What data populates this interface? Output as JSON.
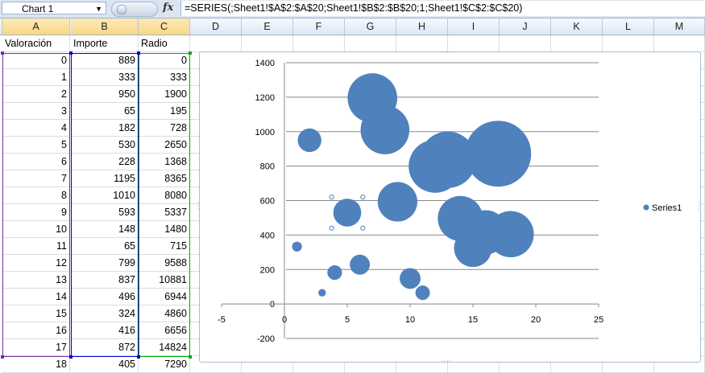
{
  "formula_bar": {
    "name_box": "Chart 1",
    "fx_label": "fx",
    "formula": "=SERIES(;Sheet1!$A$2:$A$20;Sheet1!$B$2:$B$20;1;Sheet1!$C$2:$C$20)"
  },
  "columns": [
    "A",
    "B",
    "C",
    "D",
    "E",
    "F",
    "G",
    "H",
    "I",
    "J",
    "K",
    "L",
    "M"
  ],
  "sheet": {
    "headers": [
      "Valoración",
      "Importe",
      "Radio"
    ],
    "rows": [
      [
        "0",
        "889",
        "0"
      ],
      [
        "1",
        "333",
        "333"
      ],
      [
        "2",
        "950",
        "1900"
      ],
      [
        "3",
        "65",
        "195"
      ],
      [
        "4",
        "182",
        "728"
      ],
      [
        "5",
        "530",
        "2650"
      ],
      [
        "6",
        "228",
        "1368"
      ],
      [
        "7",
        "1195",
        "8365"
      ],
      [
        "8",
        "1010",
        "8080"
      ],
      [
        "9",
        "593",
        "5337"
      ],
      [
        "10",
        "148",
        "1480"
      ],
      [
        "11",
        "65",
        "715"
      ],
      [
        "12",
        "799",
        "9588"
      ],
      [
        "13",
        "837",
        "10881"
      ],
      [
        "14",
        "496",
        "6944"
      ],
      [
        "15",
        "324",
        "4860"
      ],
      [
        "16",
        "416",
        "6656"
      ],
      [
        "17",
        "872",
        "14824"
      ],
      [
        "18",
        "405",
        "7290"
      ]
    ]
  },
  "chart_data": {
    "type": "scatter",
    "subtype": "bubble",
    "series": [
      {
        "name": "Series1",
        "color": "#4f81bd",
        "x": [
          0,
          1,
          2,
          3,
          4,
          5,
          6,
          7,
          8,
          9,
          10,
          11,
          12,
          13,
          14,
          15,
          16,
          17,
          18
        ],
        "y": [
          889,
          333,
          950,
          65,
          182,
          530,
          228,
          1195,
          1010,
          593,
          148,
          65,
          799,
          837,
          496,
          324,
          416,
          872,
          405
        ],
        "size": [
          0,
          333,
          1900,
          195,
          728,
          2650,
          1368,
          8365,
          8080,
          5337,
          1480,
          715,
          9588,
          10881,
          6944,
          4860,
          6656,
          14824,
          7290
        ]
      }
    ],
    "xlim": [
      -5,
      25
    ],
    "ylim": [
      -200,
      1400
    ],
    "x_ticks": [
      "-5",
      "0",
      "5",
      "10",
      "15",
      "20",
      "25"
    ],
    "y_ticks": [
      "-200",
      "0",
      "200",
      "400",
      "600",
      "800",
      "1000",
      "1200",
      "1400"
    ],
    "grid": "horizontal",
    "legend": {
      "position": "right",
      "entries": [
        "Series1"
      ]
    },
    "selected_point_index": 5
  }
}
